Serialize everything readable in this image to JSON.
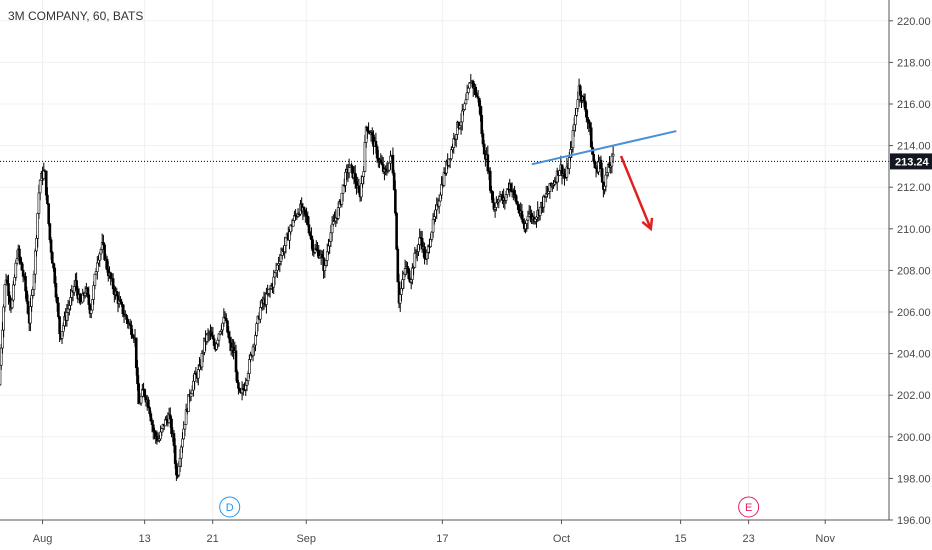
{
  "chart_data": {
    "type": "candlestick",
    "title": "3M COMPANY, 60, BATS",
    "current_price": "213.24",
    "ylim": [
      196,
      221
    ],
    "y_ticks": [
      "196.00",
      "198.00",
      "200.00",
      "202.00",
      "204.00",
      "206.00",
      "208.00",
      "210.00",
      "212.00",
      "214.00",
      "216.00",
      "218.00",
      "220.00"
    ],
    "x_ticks": [
      {
        "label": "Aug",
        "day": 0
      },
      {
        "label": "13",
        "day": 12
      },
      {
        "label": "21",
        "day": 20
      },
      {
        "label": "Sep",
        "day": 31
      },
      {
        "label": "17",
        "day": 47
      },
      {
        "label": "Oct",
        "day": 61
      },
      {
        "label": "15",
        "day": 75
      },
      {
        "label": "23",
        "day": 83
      },
      {
        "label": "Nov",
        "day": 92
      }
    ],
    "x_range_days": [
      -5,
      99.5
    ],
    "grid": true,
    "price_series": [
      [
        -5,
        202.5
      ],
      [
        -4.2,
        207.8
      ],
      [
        -3.5,
        206.2
      ],
      [
        -2.8,
        209.0
      ],
      [
        -2.0,
        207.5
      ],
      [
        -1.4,
        205.5
      ],
      [
        -0.8,
        208.2
      ],
      [
        -0.2,
        212.3
      ],
      [
        0.4,
        212.8
      ],
      [
        1.0,
        209.5
      ],
      [
        1.6,
        207.5
      ],
      [
        2.2,
        204.8
      ],
      [
        2.8,
        205.7
      ],
      [
        3.4,
        206.5
      ],
      [
        4.0,
        207.4
      ],
      [
        4.6,
        206.3
      ],
      [
        5.2,
        207.1
      ],
      [
        5.8,
        206.0
      ],
      [
        6.6,
        208.6
      ],
      [
        7.2,
        209.2
      ],
      [
        7.8,
        208.0
      ],
      [
        8.6,
        207.0
      ],
      [
        9.4,
        206.2
      ],
      [
        10.2,
        205.5
      ],
      [
        11.0,
        204.8
      ],
      [
        11.4,
        201.5
      ],
      [
        12.0,
        202.2
      ],
      [
        12.6,
        201.6
      ],
      [
        13.2,
        200.2
      ],
      [
        13.8,
        199.8
      ],
      [
        14.4,
        200.6
      ],
      [
        15.0,
        201.0
      ],
      [
        15.6,
        199.6
      ],
      [
        15.9,
        198.0
      ],
      [
        16.4,
        199.5
      ],
      [
        16.8,
        200.6
      ],
      [
        17.4,
        202.0
      ],
      [
        18.0,
        202.8
      ],
      [
        18.6,
        203.2
      ],
      [
        19.2,
        204.6
      ],
      [
        19.8,
        205.0
      ],
      [
        20.4,
        204.3
      ],
      [
        21.0,
        205.2
      ],
      [
        21.6,
        205.7
      ],
      [
        22.2,
        204.3
      ],
      [
        22.8,
        204.0
      ],
      [
        23.0,
        202.4
      ],
      [
        23.4,
        201.9
      ],
      [
        24.0,
        202.6
      ],
      [
        24.6,
        203.8
      ],
      [
        25.2,
        205.0
      ],
      [
        25.8,
        206.3
      ],
      [
        26.4,
        206.6
      ],
      [
        27.2,
        207.4
      ],
      [
        28.0,
        208.6
      ],
      [
        28.8,
        209.4
      ],
      [
        29.6,
        210.4
      ],
      [
        30.4,
        211.0
      ],
      [
        31.2,
        210.5
      ],
      [
        32.0,
        209.0
      ],
      [
        32.8,
        208.8
      ],
      [
        33.3,
        208.0
      ],
      [
        33.8,
        209.5
      ],
      [
        34.4,
        210.3
      ],
      [
        35.0,
        211.0
      ],
      [
        35.6,
        212.3
      ],
      [
        36.2,
        213.0
      ],
      [
        36.8,
        212.5
      ],
      [
        37.4,
        211.5
      ],
      [
        37.9,
        213.0
      ],
      [
        38.2,
        215.0
      ],
      [
        38.8,
        214.5
      ],
      [
        39.6,
        213.4
      ],
      [
        40.4,
        212.6
      ],
      [
        41.2,
        213.5
      ],
      [
        41.5,
        212.0
      ],
      [
        41.8,
        208.8
      ],
      [
        42.0,
        206.5
      ],
      [
        42.4,
        207.2
      ],
      [
        42.8,
        208.2
      ],
      [
        43.4,
        207.6
      ],
      [
        44.0,
        208.8
      ],
      [
        44.6,
        209.6
      ],
      [
        45.2,
        208.4
      ],
      [
        45.8,
        209.8
      ],
      [
        46.4,
        210.8
      ],
      [
        47.0,
        212.0
      ],
      [
        47.6,
        213.0
      ],
      [
        48.2,
        213.8
      ],
      [
        48.8,
        214.8
      ],
      [
        49.4,
        215.3
      ],
      [
        50.0,
        216.2
      ],
      [
        50.5,
        217.2
      ],
      [
        51.0,
        216.6
      ],
      [
        51.5,
        216.0
      ],
      [
        51.9,
        214.0
      ],
      [
        52.4,
        213.3
      ],
      [
        52.8,
        212.0
      ],
      [
        53.2,
        211.0
      ],
      [
        53.8,
        211.6
      ],
      [
        54.4,
        211.3
      ],
      [
        55.0,
        212.2
      ],
      [
        55.6,
        211.6
      ],
      [
        56.2,
        210.8
      ],
      [
        56.8,
        210.0
      ],
      [
        57.2,
        210.8
      ],
      [
        57.8,
        210.5
      ],
      [
        58.4,
        210.8
      ],
      [
        59.6,
        211.8
      ],
      [
        60.4,
        212.4
      ],
      [
        61.0,
        213.0
      ],
      [
        61.6,
        212.4
      ],
      [
        62.2,
        213.6
      ],
      [
        62.8,
        215.5
      ],
      [
        63.2,
        216.8
      ],
      [
        63.8,
        216.0
      ],
      [
        64.4,
        215.0
      ],
      [
        64.8,
        213.5
      ],
      [
        65.2,
        212.7
      ],
      [
        65.6,
        213.4
      ],
      [
        66.0,
        212.0
      ],
      [
        66.6,
        212.8
      ],
      [
        67.2,
        213.4
      ]
    ],
    "annotations": {
      "blue_trendline": {
        "from": [
          57.5,
          213.1
        ],
        "to": [
          74.5,
          214.7
        ],
        "color": "#4a8fd8"
      },
      "red_arrow": {
        "from": [
          68.0,
          213.5
        ],
        "to": [
          71.5,
          210.0
        ],
        "color": "#e02020"
      },
      "current_price_line_color": "#000000",
      "price_tag_bg": "#131722"
    },
    "events": [
      {
        "label": "D",
        "day": 22,
        "color": "#2196f3"
      },
      {
        "label": "E",
        "day": 83,
        "color": "#e91e63"
      }
    ]
  }
}
